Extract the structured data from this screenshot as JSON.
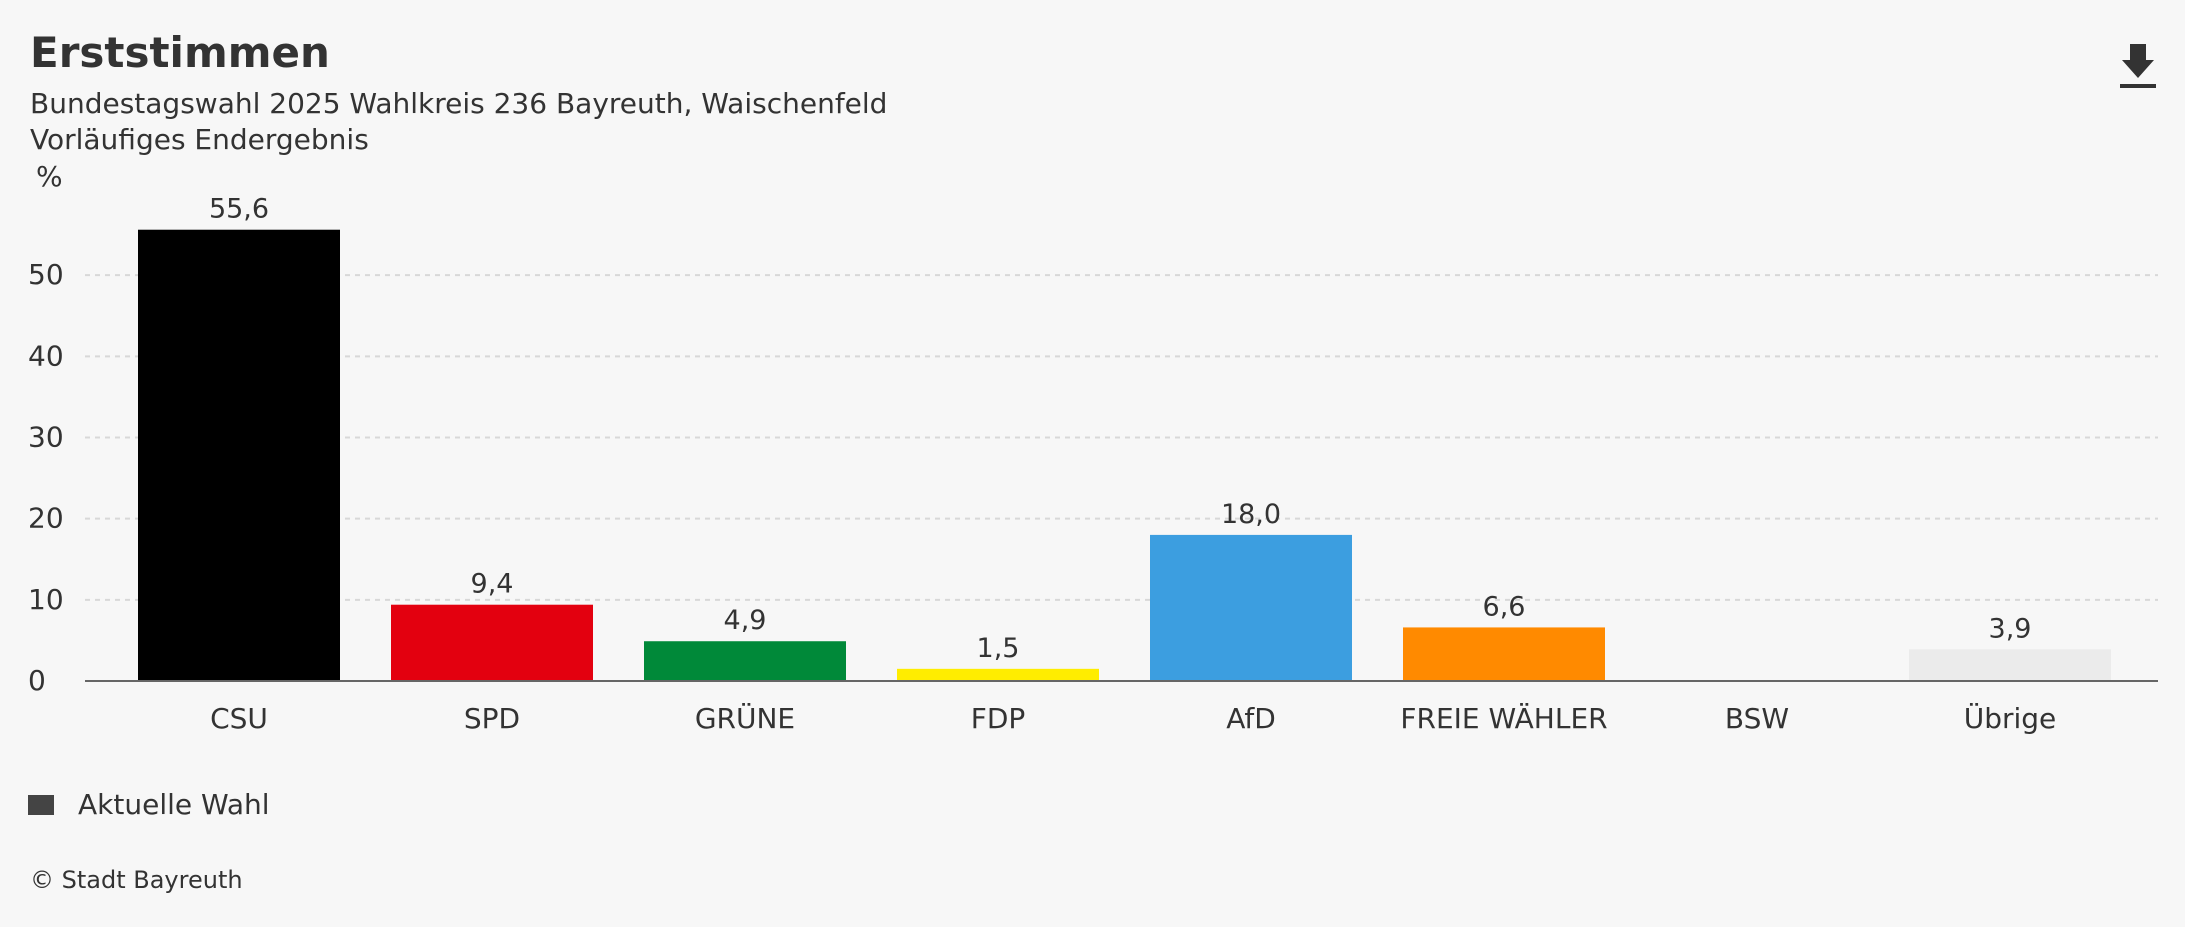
{
  "header": {
    "title": "Erststimmen",
    "subtitle_line1": "Bundestagswahl 2025 Wahlkreis 236 Bayreuth, Waischenfeld",
    "subtitle_line2": "Vorläufiges Endergebnis",
    "download_icon": "download-icon"
  },
  "chart_data": {
    "type": "bar",
    "title": "Erststimmen",
    "subtitle": "Bundestagswahl 2025 Wahlkreis 236 Bayreuth, Waischenfeld",
    "ylabel": "%",
    "xlabel": "",
    "ylim": [
      0,
      60
    ],
    "yticks": [
      0,
      10,
      20,
      30,
      40,
      50
    ],
    "grid": true,
    "categories": [
      "CSU",
      "SPD",
      "GRÜNE",
      "FDP",
      "AfD",
      "FREIE WÄHLER",
      "BSW",
      "Übrige"
    ],
    "series": [
      {
        "name": "Aktuelle Wahl",
        "values": [
          55.6,
          9.4,
          4.9,
          1.5,
          18.0,
          6.6,
          null,
          3.9
        ],
        "labels": [
          "55,6",
          "9,4",
          "4,9",
          "1,5",
          "18,0",
          "6,6",
          "",
          "3,9"
        ],
        "colors": [
          "#000000",
          "#e3000f",
          "#008939",
          "#ffed00",
          "#3c9ee0",
          "#ff8a00",
          "#7d2a5a",
          "#ebebeb"
        ]
      }
    ],
    "legend_position": "bottom-left"
  },
  "legend": {
    "label": "Aktuelle Wahl",
    "color": "#444444"
  },
  "footer": {
    "credit": "© Stadt Bayreuth"
  }
}
